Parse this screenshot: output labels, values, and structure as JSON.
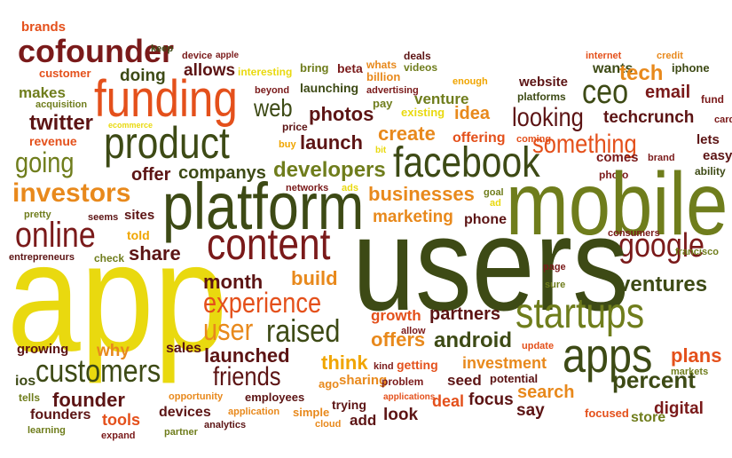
{
  "colors": {
    "dark_red": "#7a1a1a",
    "orange_red": "#e4501b",
    "orange": "#e8891c",
    "amber": "#f0a500",
    "yellow": "#e9d90f",
    "olive": "#6f7d1c",
    "dark_olive": "#3d4a15",
    "maroon": "#5c1414"
  },
  "words": {
    "brands": "brands",
    "cofounder": "cofounder",
    "keep": "keep",
    "device": "device",
    "apple": "apple",
    "deals": "deals",
    "whats": "whats",
    "videos": "videos",
    "internet": "internet",
    "credit": "credit",
    "customer": "customer",
    "doing": "doing",
    "allows": "allows",
    "interesting": "interesting",
    "bring": "bring",
    "beta": "beta",
    "billion": "billion",
    "enough": "enough",
    "website": "website",
    "wants": "wants",
    "tech": "tech",
    "iphone": "iphone",
    "makes": "makes",
    "funding": "funding",
    "beyond": "beyond",
    "launching": "launching",
    "advertising": "advertising",
    "platforms": "platforms",
    "ceo": "ceo",
    "email": "email",
    "fund": "fund",
    "acquisition": "acquisition",
    "web": "web",
    "photos": "photos",
    "pay": "pay",
    "venture": "venture",
    "techcrunch": "techcrunch",
    "twitter": "twitter",
    "ecommerce": "ecommerce",
    "price": "price",
    "existing": "existing",
    "idea": "idea",
    "looking": "looking",
    "card": "card",
    "revenue": "revenue",
    "product": "product",
    "launch": "launch",
    "create": "create",
    "offering": "offering",
    "coming": "coming",
    "lets": "lets",
    "buy": "buy",
    "bit": "bit",
    "something": "something",
    "going": "going",
    "facebook": "facebook",
    "easy": "easy",
    "developers": "developers",
    "comes": "comes",
    "brand": "brand",
    "offer": "offer",
    "companys": "companys",
    "photo": "photo",
    "ability": "ability",
    "investors": "investors",
    "networks": "networks",
    "ads": "ads",
    "businesses": "businesses",
    "goal": "goal",
    "platform": "platform",
    "mobile": "mobile",
    "ad": "ad",
    "pretty": "pretty",
    "seems": "seems",
    "sites": "sites",
    "marketing": "marketing",
    "phone": "phone",
    "online": "online",
    "content": "content",
    "google": "google",
    "consumers": "consumers",
    "told": "told",
    "entrepreneurs": "entrepreneurs",
    "check": "check",
    "share": "share",
    "users": "users",
    "francisco": "francisco",
    "app": "app",
    "page": "page",
    "month": "month",
    "build": "build",
    "sure": "sure",
    "ventures": "ventures",
    "experience": "experience",
    "startups": "startups",
    "growth": "growth",
    "partners": "partners",
    "allow": "allow",
    "user": "user",
    "raised": "raised",
    "offers": "offers",
    "android": "android",
    "update": "update",
    "growing": "growing",
    "why": "why",
    "sales": "sales",
    "apps": "apps",
    "plans": "plans",
    "launched": "launched",
    "think": "think",
    "getting": "getting",
    "investment": "investment",
    "percent": "percent",
    "customers": "customers",
    "friends": "friends",
    "kind": "kind",
    "potential": "potential",
    "markets": "markets",
    "ios": "ios",
    "tells": "tells",
    "founder": "founder",
    "opportunity": "opportunity",
    "employees": "employees",
    "ago": "ago",
    "sharing": "sharing",
    "problem": "problem",
    "seed": "seed",
    "search": "search",
    "founders": "founders",
    "devices": "devices",
    "application": "application",
    "simple": "simple",
    "trying": "trying",
    "applications": "applications",
    "deal": "deal",
    "focus": "focus",
    "say": "say",
    "digital": "digital",
    "tools": "tools",
    "analytics": "analytics",
    "cloud": "cloud",
    "add": "add",
    "look": "look",
    "focused": "focused",
    "store": "store",
    "learning": "learning",
    "expand": "expand",
    "partner": "partner"
  }
}
